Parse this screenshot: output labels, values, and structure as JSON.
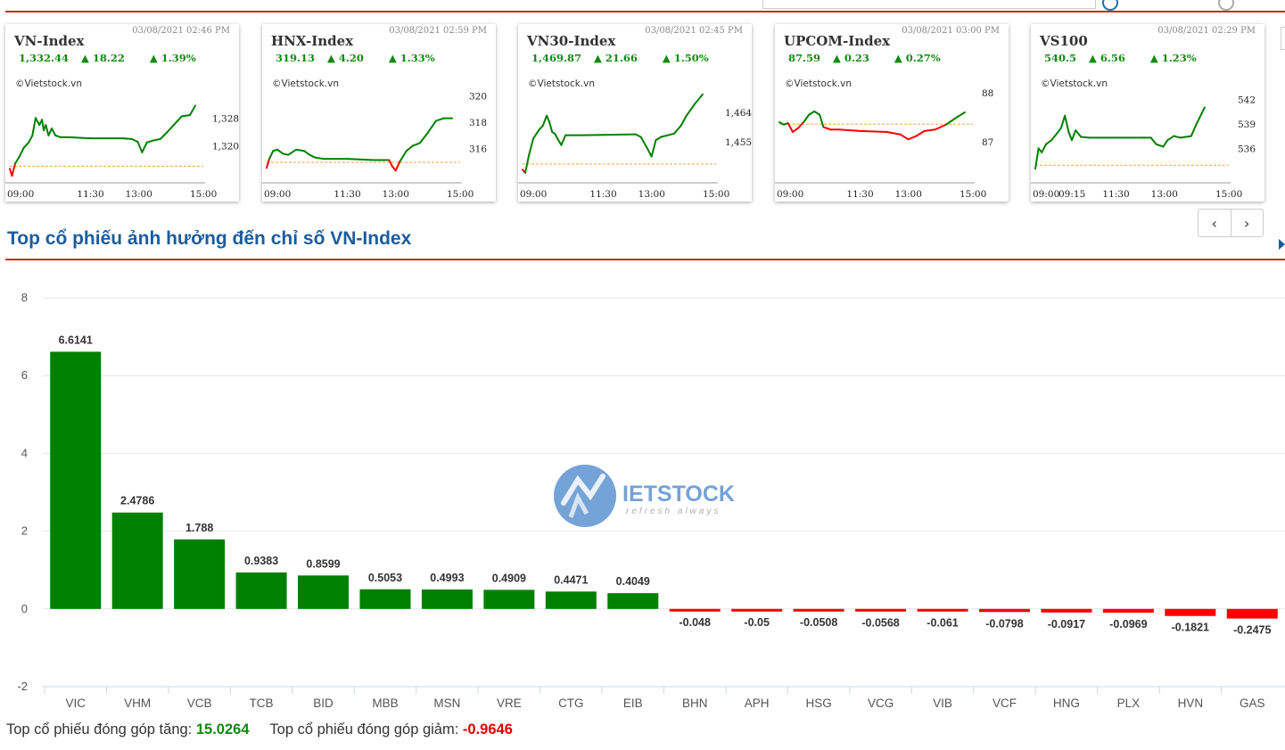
{
  "colors": {
    "up": "#008000",
    "down": "#ff0000",
    "title": "#1c5c9e",
    "rule": "#d9251d",
    "ref_line": "#f0a040"
  },
  "index_cards": [
    {
      "name": "VN-Index",
      "time": "03/08/2021 02:46 PM",
      "value": "1,332.44",
      "change": "18.22",
      "pct": "1.39%",
      "source": "©Vietstock.vn",
      "y_ticks": [
        "1,328",
        "1,320"
      ],
      "y_tick_values": [
        1328,
        1320
      ],
      "y_range": [
        1310,
        1338
      ],
      "x_ticks": [
        "09:00",
        "11:30",
        "13:00",
        "15:00"
      ],
      "x_tick_minutes": [
        0,
        150,
        240,
        360
      ],
      "x_span": 360,
      "ref": 1314.22,
      "series": [
        [
          0,
          1313.5
        ],
        [
          4,
          1311.5
        ],
        [
          10,
          1315
        ],
        [
          18,
          1317
        ],
        [
          26,
          1319.5
        ],
        [
          35,
          1321
        ],
        [
          42,
          1323
        ],
        [
          48,
          1328
        ],
        [
          55,
          1326
        ],
        [
          60,
          1327.5
        ],
        [
          63,
          1324.5
        ],
        [
          67,
          1326
        ],
        [
          72,
          1323
        ],
        [
          78,
          1325
        ],
        [
          85,
          1323
        ],
        [
          95,
          1322.5
        ],
        [
          110,
          1322.5
        ],
        [
          150,
          1322.2
        ],
        [
          210,
          1322.2
        ],
        [
          227,
          1322
        ],
        [
          238,
          1321.2
        ],
        [
          246,
          1318.2
        ],
        [
          255,
          1321
        ],
        [
          265,
          1321.5
        ],
        [
          280,
          1322
        ],
        [
          293,
          1324
        ],
        [
          305,
          1326
        ],
        [
          320,
          1328.5
        ],
        [
          335,
          1328.8
        ],
        [
          345,
          1331.5
        ]
      ]
    },
    {
      "name": "HNX-Index",
      "time": "03/08/2021 02:59 PM",
      "value": "319.13",
      "change": "4.20",
      "pct": "1.33%",
      "source": "©Vietstock.vn",
      "y_ticks": [
        "320",
        "318",
        "316"
      ],
      "y_tick_values": [
        320,
        318,
        316
      ],
      "y_range": [
        313.5,
        321
      ],
      "x_ticks": [
        "09:00",
        "11:30",
        "13:00",
        "15:00"
      ],
      "x_tick_minutes": [
        0,
        150,
        240,
        360
      ],
      "x_span": 360,
      "ref": 314.93,
      "series": [
        [
          0,
          314.5
        ],
        [
          5,
          315.2
        ],
        [
          12,
          315.8
        ],
        [
          20,
          315.9
        ],
        [
          30,
          315.6
        ],
        [
          40,
          315.5
        ],
        [
          55,
          315.9
        ],
        [
          70,
          315.8
        ],
        [
          80,
          315.5
        ],
        [
          90,
          315.3
        ],
        [
          105,
          315.2
        ],
        [
          150,
          315.2
        ],
        [
          200,
          315.1
        ],
        [
          228,
          315.1
        ],
        [
          234,
          314.6
        ],
        [
          240,
          314.3
        ],
        [
          248,
          315.0
        ],
        [
          260,
          315.8
        ],
        [
          272,
          316.2
        ],
        [
          285,
          316.4
        ],
        [
          300,
          317.2
        ],
        [
          315,
          318.1
        ],
        [
          330,
          318.3
        ],
        [
          345,
          318.3
        ]
      ]
    },
    {
      "name": "VN30-Index",
      "time": "03/08/2021 02:45 PM",
      "value": "1,469.87",
      "change": "21.66",
      "pct": "1.50%",
      "source": "©Vietstock.vn",
      "y_ticks": [
        "1,464",
        "1,455"
      ],
      "y_tick_values": [
        1464,
        1455
      ],
      "y_range": [
        1443,
        1473
      ],
      "x_ticks": [
        "09:00",
        "11:30",
        "13:00",
        "15:00"
      ],
      "x_tick_minutes": [
        0,
        150,
        240,
        360
      ],
      "x_span": 360,
      "ref": 1448.21,
      "series": [
        [
          0,
          1446.5
        ],
        [
          5,
          1445.5
        ],
        [
          12,
          1451
        ],
        [
          20,
          1456
        ],
        [
          30,
          1458.5
        ],
        [
          38,
          1460
        ],
        [
          45,
          1463
        ],
        [
          50,
          1461
        ],
        [
          55,
          1458
        ],
        [
          60,
          1457.5
        ],
        [
          65,
          1456
        ],
        [
          72,
          1454
        ],
        [
          80,
          1457
        ],
        [
          90,
          1457
        ],
        [
          110,
          1457
        ],
        [
          150,
          1457.1
        ],
        [
          210,
          1457.3
        ],
        [
          220,
          1456.5
        ],
        [
          232,
          1453
        ],
        [
          240,
          1450.5
        ],
        [
          248,
          1455.5
        ],
        [
          258,
          1456.5
        ],
        [
          270,
          1457
        ],
        [
          282,
          1457.5
        ],
        [
          295,
          1460
        ],
        [
          305,
          1463
        ],
        [
          320,
          1466.5
        ],
        [
          335,
          1469.5
        ]
      ]
    },
    {
      "name": "UPCOM-Index",
      "time": "03/08/2021 03:00 PM",
      "value": "87.59",
      "change": "0.23",
      "pct": "0.27%",
      "source": "©Vietstock.vn",
      "y_ticks": [
        "88",
        "87"
      ],
      "y_tick_values": [
        88,
        87
      ],
      "y_range": [
        86.2,
        88.2
      ],
      "x_ticks": [
        "09:00",
        "11:30",
        "13:00",
        "15:00"
      ],
      "x_tick_minutes": [
        0,
        150,
        240,
        360
      ],
      "x_span": 360,
      "ref": 87.36,
      "series": [
        [
          0,
          87.4
        ],
        [
          8,
          87.35
        ],
        [
          16,
          87.38
        ],
        [
          25,
          87.2
        ],
        [
          35,
          87.28
        ],
        [
          45,
          87.4
        ],
        [
          55,
          87.55
        ],
        [
          65,
          87.62
        ],
        [
          75,
          87.55
        ],
        [
          82,
          87.3
        ],
        [
          95,
          87.25
        ],
        [
          110,
          87.25
        ],
        [
          150,
          87.22
        ],
        [
          200,
          87.2
        ],
        [
          225,
          87.15
        ],
        [
          240,
          87.05
        ],
        [
          255,
          87.12
        ],
        [
          270,
          87.22
        ],
        [
          290,
          87.25
        ],
        [
          310,
          87.35
        ],
        [
          330,
          87.5
        ],
        [
          345,
          87.6
        ]
      ]
    },
    {
      "name": "VS100",
      "time": "03/08/2021 02:29 PM",
      "value": "540.5",
      "change": "6.56",
      "pct": "1.23%",
      "source": "©Vietstock.vn",
      "y_ticks": [
        "542",
        "539",
        "536"
      ],
      "y_tick_values": [
        542,
        539,
        536
      ],
      "y_range": [
        532,
        544
      ],
      "x_ticks": [
        "09:00",
        "09:15",
        "11:30",
        "13:00",
        "15:00"
      ],
      "x_tick_minutes": [
        0,
        15,
        150,
        240,
        360
      ],
      "x_span": 360,
      "ref": 533.94,
      "series": [
        [
          0,
          533.5
        ],
        [
          6,
          536
        ],
        [
          12,
          535.5
        ],
        [
          20,
          536.5
        ],
        [
          30,
          537
        ],
        [
          40,
          537.8
        ],
        [
          48,
          538.5
        ],
        [
          55,
          540
        ],
        [
          62,
          538
        ],
        [
          68,
          537
        ],
        [
          75,
          538.2
        ],
        [
          85,
          537.4
        ],
        [
          100,
          537.3
        ],
        [
          150,
          537.3
        ],
        [
          200,
          537.3
        ],
        [
          215,
          537.3
        ],
        [
          225,
          536.5
        ],
        [
          238,
          536.2
        ],
        [
          246,
          537
        ],
        [
          258,
          537.5
        ],
        [
          270,
          537.3
        ],
        [
          290,
          537.5
        ],
        [
          300,
          539
        ],
        [
          315,
          541
        ]
      ]
    }
  ],
  "pager": {
    "prev": "‹",
    "next": "›"
  },
  "section_title": "Top cổ phiếu ảnh hưởng đến chỉ số VN-Index",
  "chart_data": {
    "type": "bar",
    "categories": [
      "VIC",
      "VHM",
      "VCB",
      "TCB",
      "BID",
      "MBB",
      "MSN",
      "VRE",
      "CTG",
      "EIB",
      "BHN",
      "APH",
      "HSG",
      "VCG",
      "VIB",
      "VCF",
      "HNG",
      "PLX",
      "HVN",
      "GAS"
    ],
    "values": [
      6.6141,
      2.4786,
      1.788,
      0.9383,
      0.8599,
      0.5053,
      0.4993,
      0.4909,
      0.4471,
      0.4049,
      -0.048,
      -0.05,
      -0.0508,
      -0.0568,
      -0.061,
      -0.0798,
      -0.0917,
      -0.0969,
      -0.1821,
      -0.2475
    ],
    "labels": [
      "6.6141",
      "2.4786",
      "1.788",
      "0.9383",
      "0.8599",
      "0.5053",
      "0.4993",
      "0.4909",
      "0.4471",
      "0.4049",
      "-0.048",
      "-0.05",
      "-0.0508",
      "-0.0568",
      "-0.061",
      "-0.0798",
      "-0.0917",
      "-0.0969",
      "-0.1821",
      "-0.2475"
    ],
    "y_ticks": [
      "8",
      "6",
      "4",
      "2",
      "0",
      "-2"
    ],
    "y_tick_values": [
      8,
      6,
      4,
      2,
      0,
      -2
    ],
    "ylim": [
      -2,
      8
    ],
    "title": "",
    "xlabel": "",
    "ylabel": "",
    "grid": true,
    "positive_color": "#008000",
    "negative_color": "#ff0000",
    "watermark": "VIETSTOCK",
    "watermark_sub": "refresh always"
  },
  "summary": {
    "up_label": "Top cổ phiếu đóng góp tăng:",
    "up_value": "15.0264",
    "down_label": "Top cổ phiếu đóng góp giảm:",
    "down_value": "-0.9646"
  }
}
